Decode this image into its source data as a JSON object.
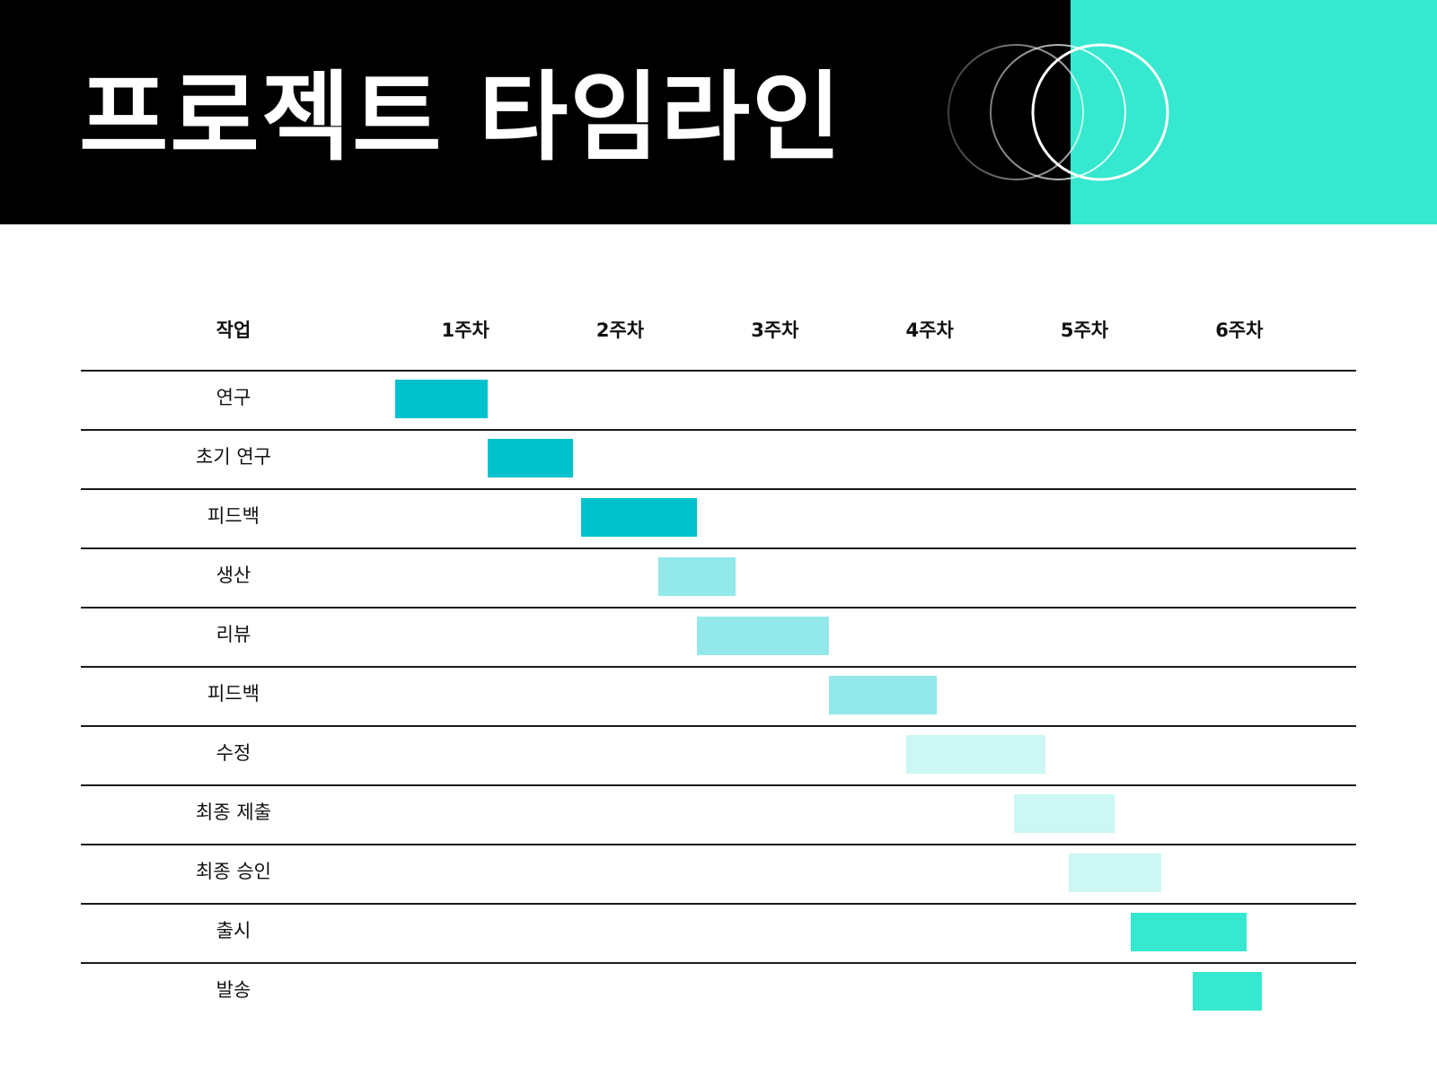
{
  "header": {
    "title": "프로젝트 타임라인",
    "background": "#000000",
    "accent_color": "#36E8CF"
  },
  "chart_data": {
    "type": "gantt",
    "task_header": "작업",
    "weeks": [
      "1주차",
      "2주차",
      "3주차",
      "4주차",
      "5주차",
      "6주차"
    ],
    "x_range": [
      0,
      6
    ],
    "colors": {
      "dark": "#00C2CC",
      "medium": "#93E8EA",
      "light": "#CCF7F2",
      "bright": "#36E8CF"
    },
    "tasks": [
      {
        "label": "연구",
        "start": 0.0,
        "end": 0.6,
        "tone": "dark"
      },
      {
        "label": "초기 연구",
        "start": 0.6,
        "end": 1.15,
        "tone": "dark"
      },
      {
        "label": "피드백",
        "start": 1.2,
        "end": 1.95,
        "tone": "dark"
      },
      {
        "label": "생산",
        "start": 1.7,
        "end": 2.2,
        "tone": "medium"
      },
      {
        "label": "리뷰",
        "start": 1.95,
        "end": 2.8,
        "tone": "medium"
      },
      {
        "label": "피드백",
        "start": 2.8,
        "end": 3.5,
        "tone": "medium"
      },
      {
        "label": "수정",
        "start": 3.3,
        "end": 4.2,
        "tone": "light"
      },
      {
        "label": "최종 제출",
        "start": 4.0,
        "end": 4.65,
        "tone": "light"
      },
      {
        "label": "최종 승인",
        "start": 4.35,
        "end": 4.95,
        "tone": "light"
      },
      {
        "label": "출시",
        "start": 4.75,
        "end": 5.5,
        "tone": "bright"
      },
      {
        "label": "발송",
        "start": 5.15,
        "end": 5.6,
        "tone": "bright"
      }
    ]
  }
}
